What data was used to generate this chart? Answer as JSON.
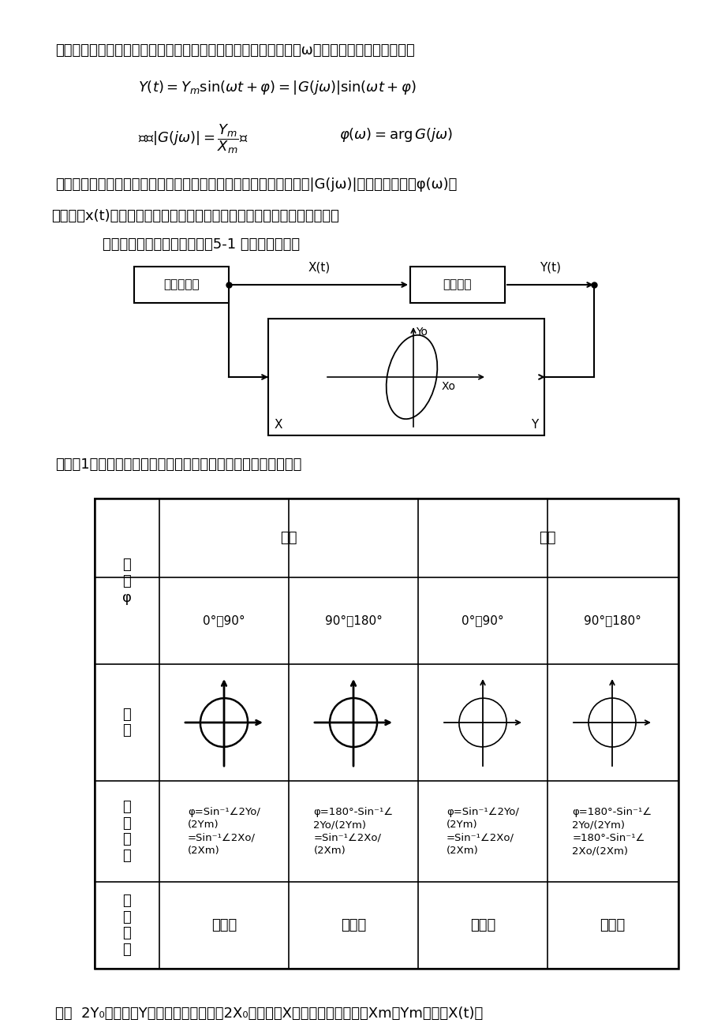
{
  "page_bg": "#ffffff",
  "lm": 0.075,
  "line1": "与输入信号同频率的正弦信号，但其幅值和相位随着输入信号频率ω的改变而改变。输出信号为",
  "line3": "只要改变输入信号的频率，就可以测得输出信号与输入信号的幅值比|G(jω)|和它们的相位差φ(ω)。",
  "line4": "不断改变x(t)的频率，就可测得被测环节（系统）的幅频特性和相频特性。",
  "line5": "本实验采用李沙育图形法，图5-1 为测试的方框图",
  "table_caption": "在表（1）中列出了超前于滞后时相位的计算公式和光点的转向。",
  "bottom_text": "表中  2Y₀为椭圆与Y轴交点之间的长度，2X₀为椭圆与X轴交点之间的距离，Xm和Ym分别为X(t)和",
  "box1_label": "信号发生器",
  "box2_label": "被测环节",
  "xt_label": "X(t)",
  "yt_label": "Y(t)",
  "osc_x_label": "X",
  "osc_y_label": "Y",
  "osc_yo_label": "Yo",
  "osc_xo_label": "Xo",
  "tbl_header_col1": "相\n角\nφ",
  "tbl_super": "超前",
  "tbl_lag": "滞后",
  "tbl_row1_cells": [
    "0°～90°",
    "90°～180°",
    "0°～90°",
    "90°～180°"
  ],
  "tbl_row2_col1": "图\n形",
  "tbl_row3_col1": "计\n算\n公\n式",
  "tbl_formulas": [
    "φ=Sin⁻¹∠2Yo/\n(2Ym)\n=Sin⁻¹∠2Xo/\n(2Xm)",
    "φ=180°-Sin⁻¹∠\n2Yo/(2Ym)\n=Sin⁻¹∠2Xo/\n(2Xm)",
    "φ=Sin⁻¹∠2Yo/\n(2Ym)\n=Sin⁻¹∠2Xo/\n(2Xm)",
    "φ=180°-Sin⁻¹∠\n2Yo/(2Ym)\n=180°-Sin⁻¹∠\n2Xo/(2Xm)"
  ],
  "tbl_row4_col1": "光\n点\n转\n向",
  "tbl_directions": [
    "顺时针",
    "顺时针",
    "逆时针",
    "逆时针"
  ],
  "ellipse_tilts": [
    20,
    0,
    20,
    0
  ],
  "ellipse_bold": [
    true,
    true,
    false,
    false
  ]
}
